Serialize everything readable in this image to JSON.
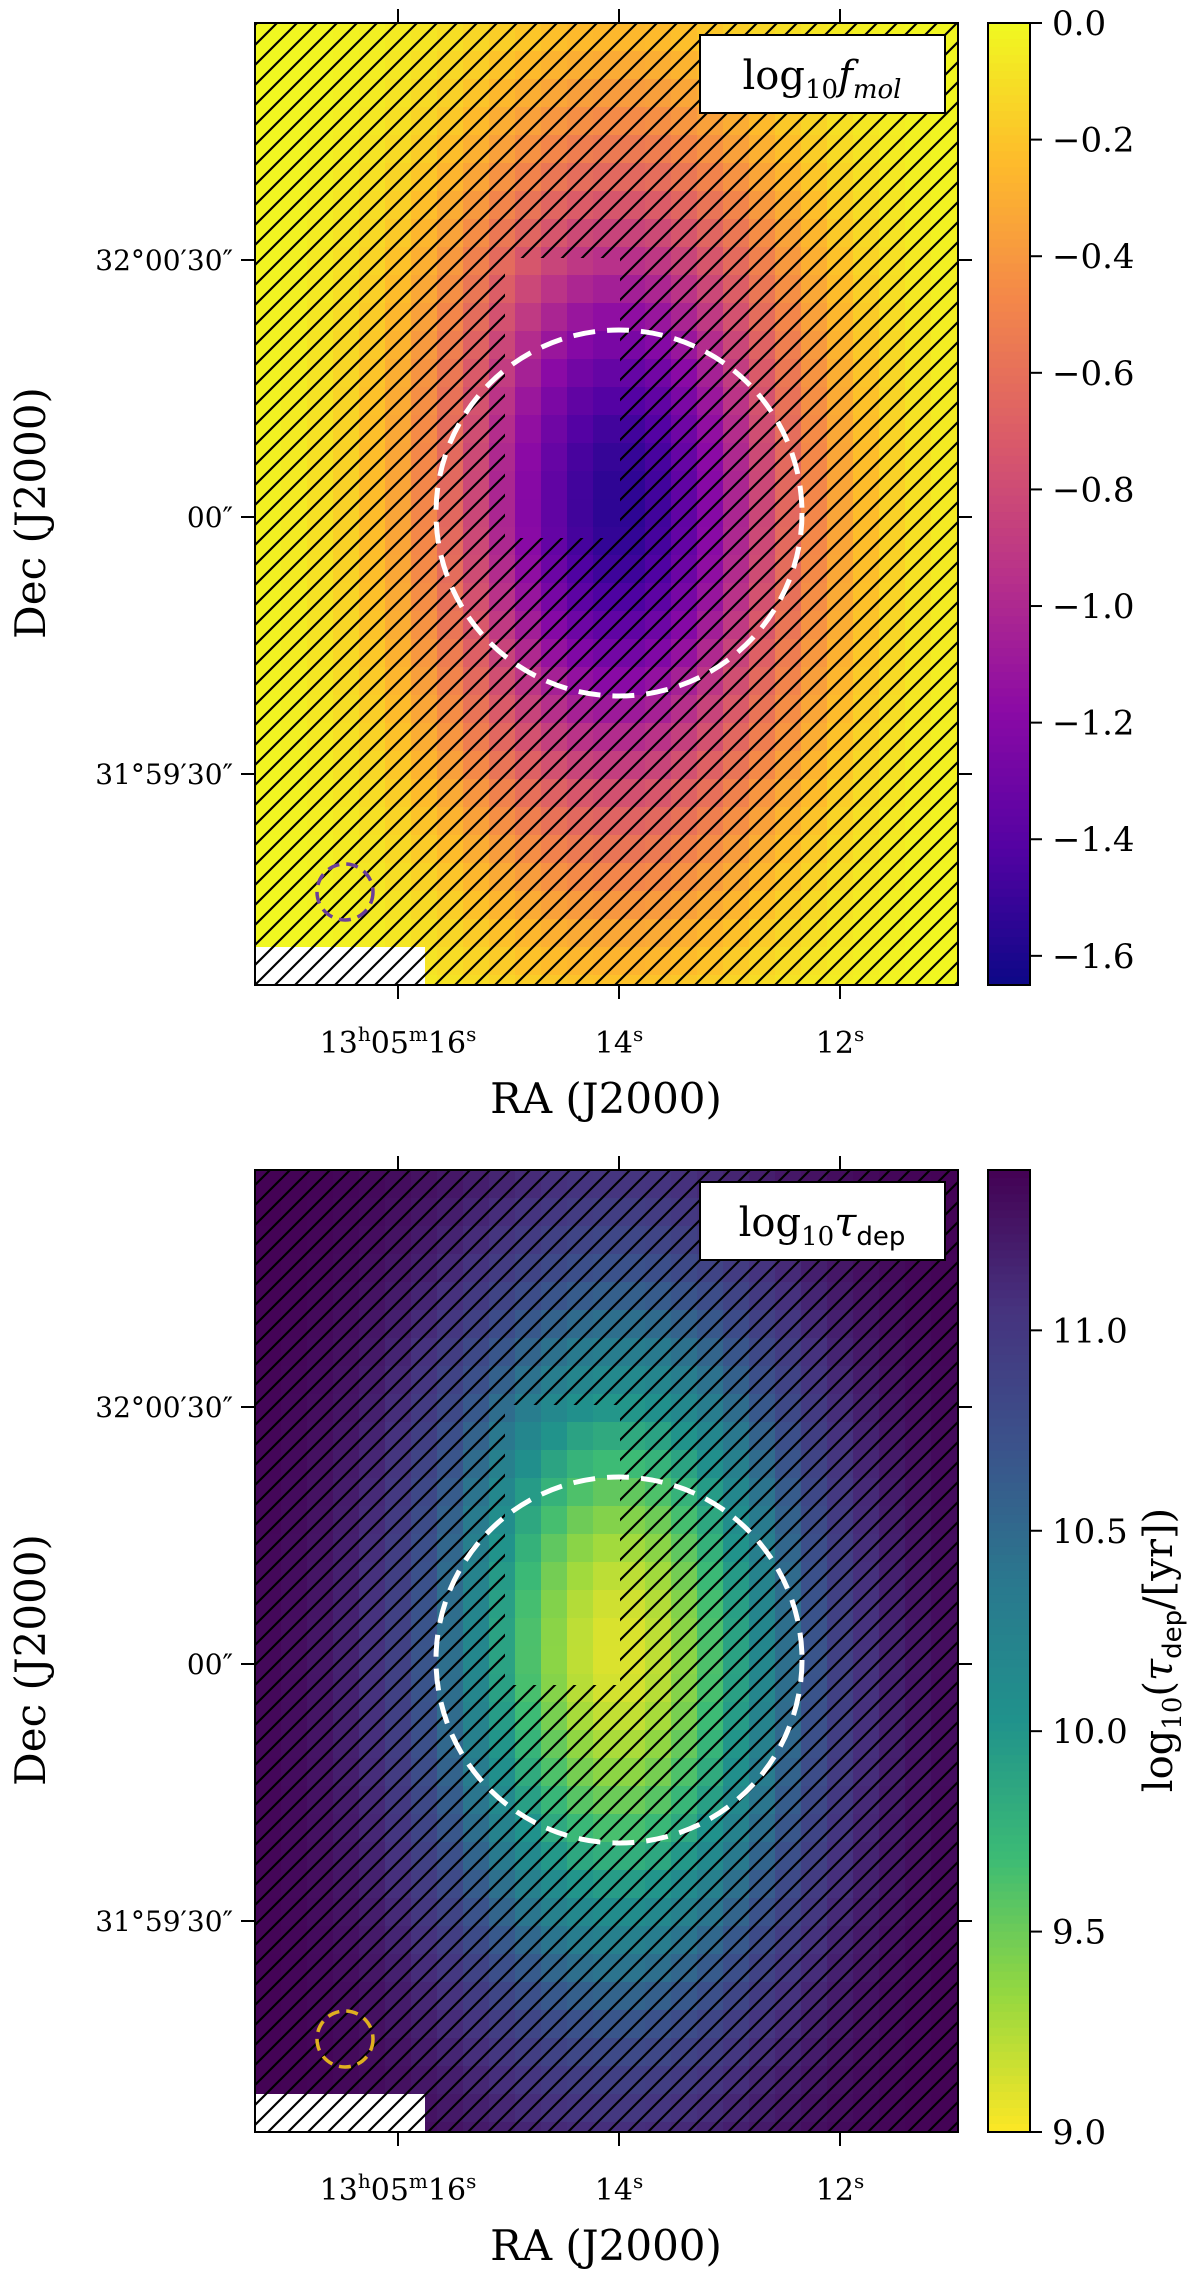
{
  "chart_data": [
    {
      "type": "heatmap",
      "panel": "top",
      "quantity_label": "log10 f_mol",
      "label_main": "log",
      "label_sub": "10",
      "label_var": "f",
      "label_var_sub": "mol",
      "colormap": "plasma",
      "colorbar_range": [
        -1.65,
        0.0
      ],
      "colorbar_ticks": [
        "0.0",
        "−0.2",
        "−0.4",
        "−0.6",
        "−0.8",
        "−1.0",
        "−1.2",
        "−1.4",
        "−1.6"
      ],
      "colorbar_tick_values": [
        0.0,
        -0.2,
        -0.4,
        -0.6,
        -0.8,
        -1.0,
        -1.2,
        -1.4,
        -1.6
      ],
      "colorbar_title": "",
      "center_value": -1.55,
      "edge_value": 0.0,
      "xlabel": "RA (J2000)",
      "ylabel": "Dec (J2000)",
      "x_ticks": [
        {
          "h": "13",
          "m": "05",
          "s": "16"
        },
        {
          "h": "",
          "m": "",
          "s": "14"
        },
        {
          "h": "",
          "m": "",
          "s": "12"
        }
      ],
      "y_ticks": [
        "32°00′30″",
        "00″",
        "31°59′30″"
      ],
      "aperture_color": "#ffffff",
      "beam_color": "#6b3e9a"
    },
    {
      "type": "heatmap",
      "panel": "bottom",
      "quantity_label": "log10 tau_dep",
      "label_main": "log",
      "label_sub": "10",
      "label_var": "τ",
      "label_var_sub": "dep",
      "colormap": "viridis_r",
      "colorbar_range": [
        9.0,
        11.4
      ],
      "colorbar_ticks": [
        "11.0",
        "10.5",
        "10.0",
        "9.5",
        "9.0"
      ],
      "colorbar_tick_values": [
        11.0,
        10.5,
        10.0,
        9.5,
        9.0
      ],
      "colorbar_title": "log10(τdep/[yr])",
      "colorbar_title_parts": {
        "pre": "log",
        "sub": "10",
        "open": "(",
        "var": "τ",
        "var_sub": "dep",
        "rest": "/[yr])"
      },
      "center_value": 9.1,
      "edge_value": 11.4,
      "xlabel": "RA (J2000)",
      "ylabel": "Dec (J2000)",
      "x_ticks": [
        {
          "h": "13",
          "m": "05",
          "s": "16"
        },
        {
          "h": "",
          "m": "",
          "s": "14"
        },
        {
          "h": "",
          "m": "",
          "s": "12"
        }
      ],
      "y_ticks": [
        "32°00′30″",
        "00″",
        "31°59′30″"
      ],
      "aperture_color": "#ffffff",
      "beam_color": "#e0b020"
    }
  ]
}
